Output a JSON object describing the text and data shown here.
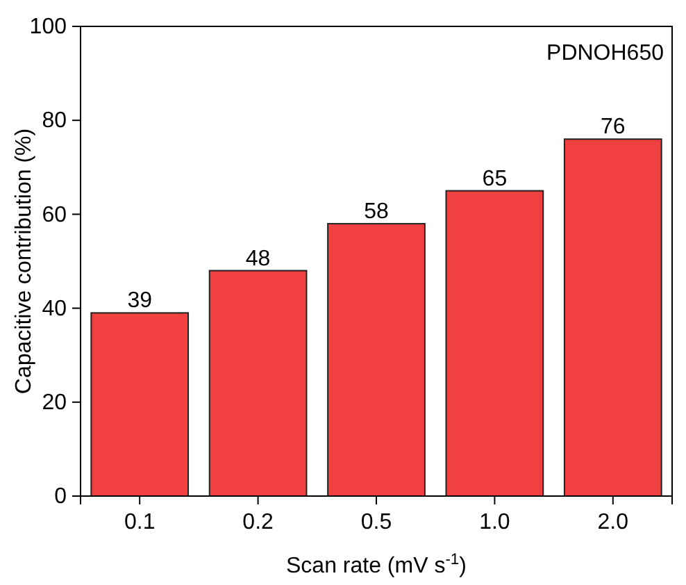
{
  "chart_data": {
    "type": "bar",
    "xlabel": "Scan rate (mV s$^{-1}$)",
    "ylabel": "Capacitive contribution (%)",
    "categories": [
      "0.1",
      "0.2",
      "0.5",
      "1.0",
      "2.0"
    ],
    "values": [
      39,
      48,
      58,
      65,
      76
    ],
    "color": "#f04040",
    "ylim": [
      0,
      100
    ],
    "yticks": [
      0,
      20,
      40,
      60,
      80,
      100
    ],
    "data_labels": true,
    "grid": false,
    "annotations": [
      "PDNOH650"
    ]
  }
}
